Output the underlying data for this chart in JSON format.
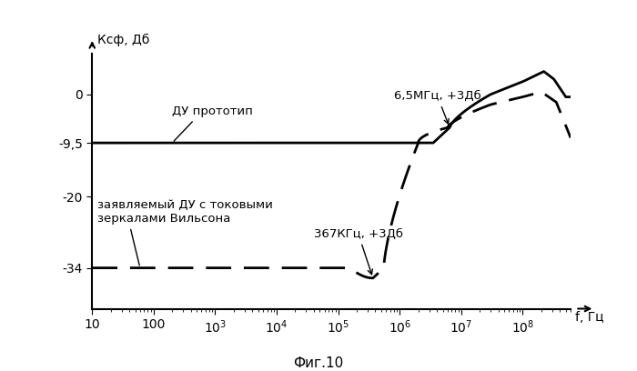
{
  "title": "",
  "xlabel": "f, Гц",
  "ylabel": "Ксф, Дб",
  "fig_caption": "Фиг.10",
  "xlim": [
    10,
    600000000.0
  ],
  "ylim": [
    -42,
    8
  ],
  "yticks": [
    0,
    -9.5,
    -20,
    -34
  ],
  "ytick_labels": [
    "0",
    "-9,5",
    "-20",
    "-34"
  ],
  "solid_label": "ДУ прототип",
  "dashed_label": "заявляемый ДУ с токовыми\nзеркалами Вильсона",
  "annot_solid": "6,5МГц, +3Дб",
  "annot_dashed": "367КГц, +3Дб",
  "solid_flat_level": -9.5,
  "dashed_flat_level": -34.0,
  "bg_color": "#ffffff",
  "line_color": "#000000"
}
